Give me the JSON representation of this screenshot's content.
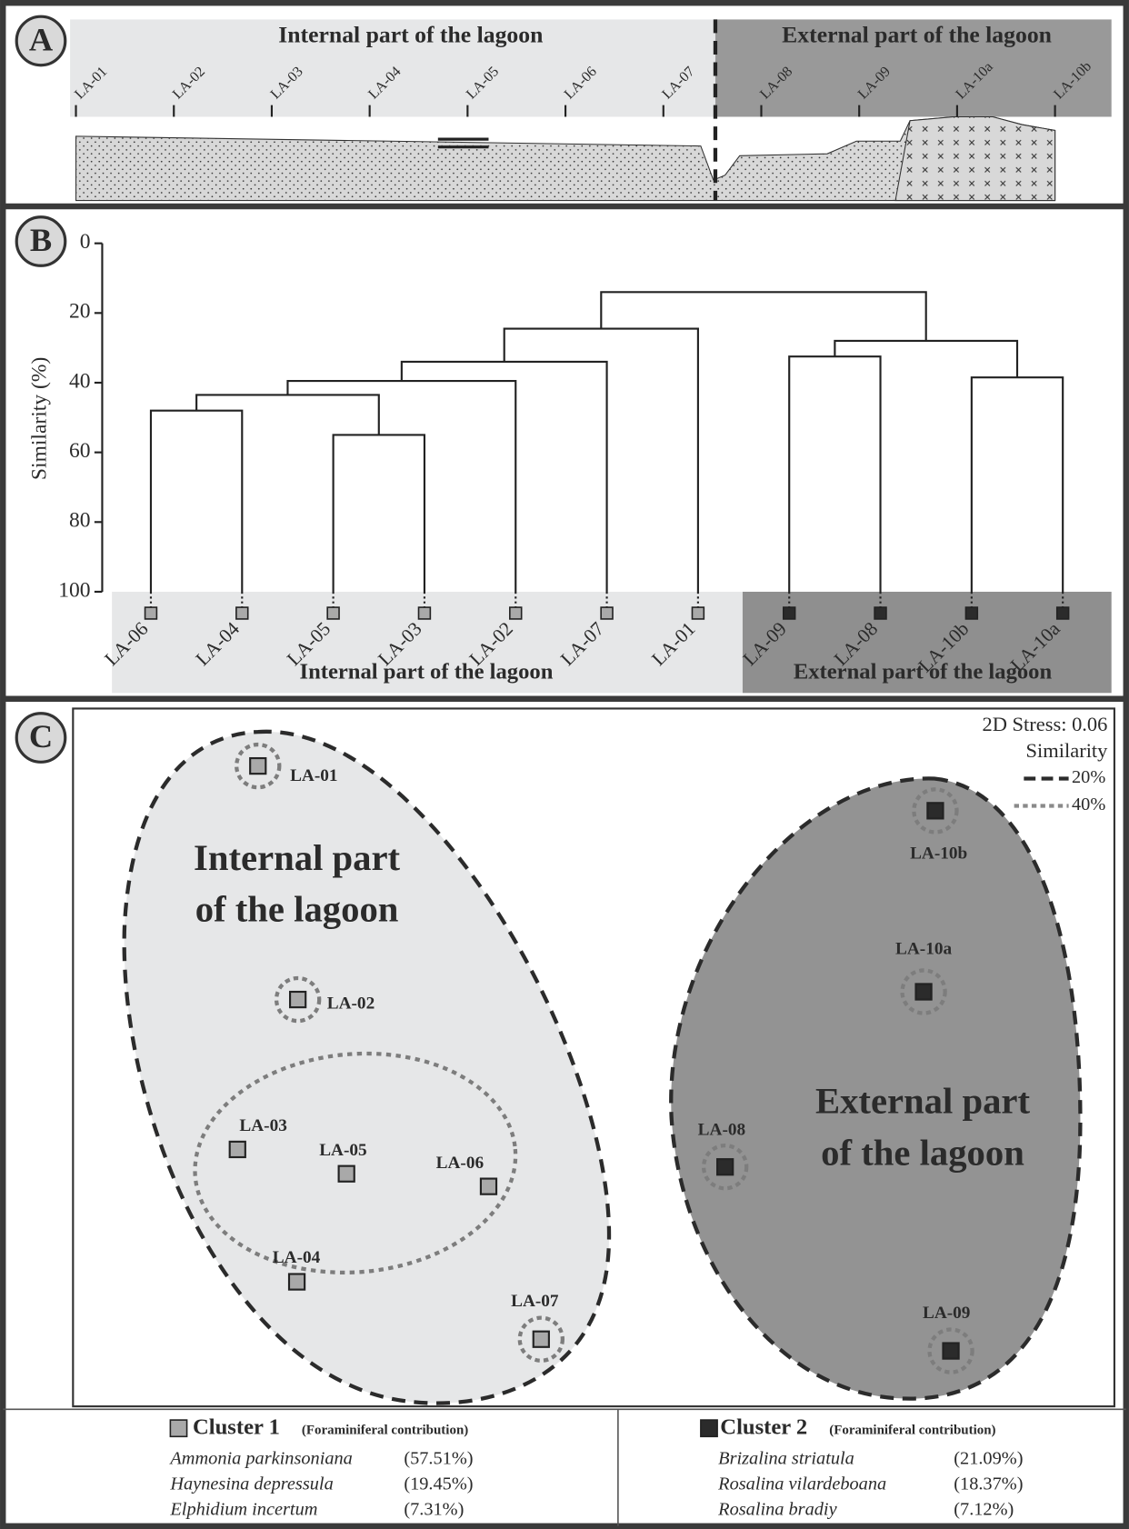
{
  "panel_a": {
    "letter": "A",
    "internal_title": "Internal part of  the lagoon",
    "external_title": "External part of  the lagoon",
    "stations": [
      "LA-01",
      "LA-02",
      "LA-03",
      "LA-04",
      "LA-05",
      "LA-06",
      "LA-07",
      "LA-08",
      "LA-09",
      "LA-10a",
      "LA-10b"
    ]
  },
  "chart_data": {
    "type": "dendrogram",
    "letter": "B",
    "y_label": "Similarity (%)",
    "ylim": [
      0,
      100
    ],
    "yticks": [
      0,
      20,
      40,
      60,
      80,
      100
    ],
    "leaves": [
      "LA-06",
      "LA-04",
      "LA-05",
      "LA-03",
      "LA-02",
      "LA-07",
      "LA-01",
      "LA-09",
      "LA-08",
      "LA-10b",
      "LA-10a"
    ],
    "leaf_colors": [
      "#a9a9a9",
      "#a9a9a9",
      "#a9a9a9",
      "#a9a9a9",
      "#a9a9a9",
      "#a9a9a9",
      "#a9a9a9",
      "#2b2b2b",
      "#2b2b2b",
      "#2b2b2b",
      "#2b2b2b"
    ],
    "merges": [
      [
        0,
        1
      ],
      [
        2,
        3
      ],
      [
        11,
        12
      ],
      [
        13,
        4
      ],
      [
        14,
        5
      ],
      [
        15,
        6
      ],
      [
        7,
        8
      ],
      [
        9,
        10
      ],
      [
        17,
        18
      ],
      [
        16,
        19
      ]
    ],
    "values": [
      48,
      55,
      43.5,
      39.5,
      34,
      24.5,
      32.5,
      38.5,
      28,
      14
    ],
    "group_labels": [
      "Internal part of the lagoon",
      "External part of  the lagoon"
    ]
  },
  "panel_c": {
    "letter": "C",
    "stress": "2D Stress: 0.06",
    "similarity": "Similarity",
    "level_20": "20%",
    "level_40": "40%",
    "internal_label": [
      "Internal part",
      "of  the lagoon"
    ],
    "external_label": [
      "External part",
      "of  the lagoon"
    ],
    "points": [
      "LA-01",
      "LA-02",
      "LA-03",
      "LA-04",
      "LA-05",
      "LA-06",
      "LA-07",
      "LA-08",
      "LA-09",
      "LA-10a",
      "LA-10b"
    ],
    "clusters": [
      {
        "name": "Cluster 1",
        "note": "(Foraminiferal contribution)",
        "species": [
          {
            "name": "Ammonia parkinsoniana",
            "share": "(57.51%)"
          },
          {
            "name": "Haynesina depressula",
            "share": "(19.45%)"
          },
          {
            "name": "Elphidium incertum",
            "share": "(7.31%)"
          }
        ]
      },
      {
        "name": "Cluster 2",
        "note": "(Foraminiferal contribution)",
        "species": [
          {
            "name": "Brizalina striatula",
            "share": "(21.09%)"
          },
          {
            "name": "Rosalina vilardeboana",
            "share": "(18.37%)"
          },
          {
            "name": "Rosalina bradiy",
            "share": "(7.12%)"
          }
        ]
      }
    ]
  }
}
